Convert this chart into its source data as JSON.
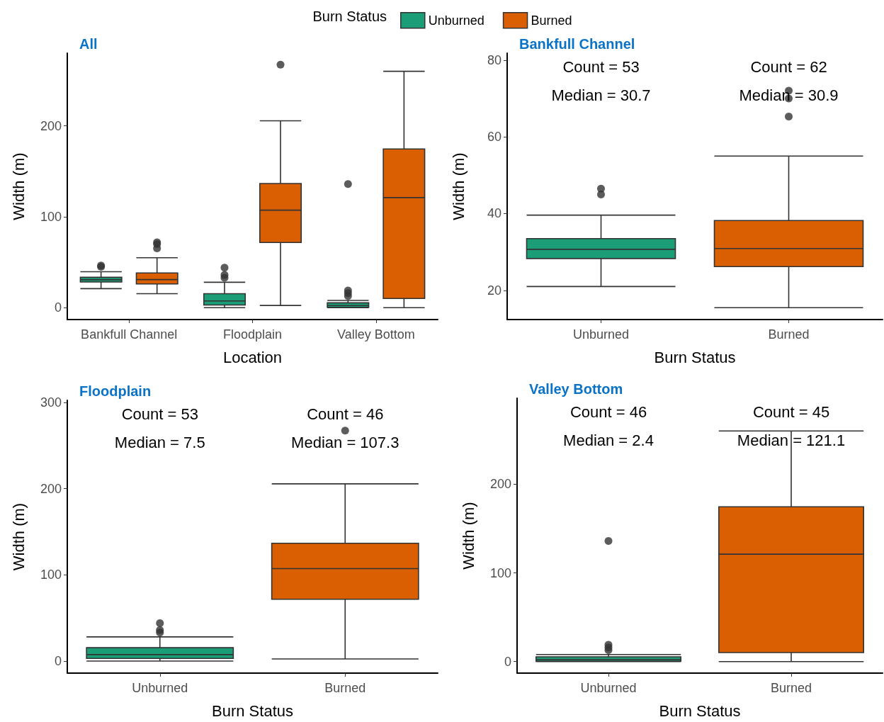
{
  "chart_data": [
    {
      "type": "box",
      "title": "All",
      "xlabel": "Location",
      "ylabel": "Width (m)",
      "legend_title": "Burn Status",
      "legend": "top",
      "categories": [
        "Bankfull Channel",
        "Floodplain",
        "Valley Bottom"
      ],
      "ylim": [
        -13,
        280
      ],
      "yticks": [
        0,
        100,
        200
      ],
      "series": [
        {
          "name": "Unburned",
          "color": "#1b9e77",
          "boxes": [
            {
              "low": 21,
              "q1": 28.3,
              "median": 30.7,
              "q3": 33.5,
              "high": 39.6,
              "outliers": [
                45,
                46.5
              ]
            },
            {
              "low": 0,
              "q1": 3,
              "median": 7.5,
              "q3": 15.5,
              "high": 28,
              "outliers": [
                33,
                36,
                44
              ]
            },
            {
              "low": 0,
              "q1": 0.5,
              "median": 2.4,
              "q3": 5.4,
              "high": 8,
              "outliers": [
                13,
                16,
                19,
                136
              ]
            }
          ]
        },
        {
          "name": "Burned",
          "color": "#d95f02",
          "boxes": [
            {
              "low": 15.5,
              "q1": 26.2,
              "median": 30.9,
              "q3": 38.2,
              "high": 55,
              "outliers": [
                65.3,
                70,
                72
              ]
            },
            {
              "low": 2.5,
              "q1": 71.7,
              "median": 107.3,
              "q3": 136.6,
              "high": 205.6,
              "outliers": [
                267.4
              ]
            },
            {
              "low": 0,
              "q1": 10.2,
              "median": 121.1,
              "q3": 174.6,
              "high": 260
            }
          ]
        }
      ]
    },
    {
      "type": "box",
      "title": "Bankfull Channel",
      "xlabel": "Burn Status",
      "ylabel": "Width (m)",
      "categories": [
        "Unburned",
        "Burned"
      ],
      "colors": [
        "#1b9e77",
        "#d95f02"
      ],
      "ylim": [
        12.4,
        81.8
      ],
      "yticks": [
        20,
        40,
        60,
        80
      ],
      "boxes": [
        {
          "low": 21,
          "q1": 28.3,
          "median": 30.7,
          "q3": 33.5,
          "high": 39.6,
          "outliers": [
            45,
            46.5
          ]
        },
        {
          "low": 15.5,
          "q1": 26.2,
          "median": 30.9,
          "q3": 38.2,
          "high": 55,
          "outliers": [
            65.3,
            70,
            72
          ]
        }
      ],
      "annotations": [
        "Count = 53",
        "Median = 30.7",
        "Count = 62",
        "Median = 30.9"
      ]
    },
    {
      "type": "box",
      "title": "Floodplain",
      "xlabel": "Burn Status",
      "ylabel": "Width (m)",
      "categories": [
        "Unburned",
        "Burned"
      ],
      "colors": [
        "#1b9e77",
        "#d95f02"
      ],
      "ylim": [
        -14,
        302.5
      ],
      "yticks": [
        0,
        100,
        200,
        300
      ],
      "boxes": [
        {
          "low": 0,
          "q1": 3,
          "median": 7.5,
          "q3": 15.5,
          "high": 28,
          "outliers": [
            33,
            36,
            44
          ]
        },
        {
          "low": 2.5,
          "q1": 71.7,
          "median": 107.3,
          "q3": 136.6,
          "high": 205.6,
          "outliers": [
            267.4
          ]
        }
      ],
      "annotations": [
        "Count = 53",
        "Median = 7.5",
        "Count = 46",
        "Median = 107.3"
      ]
    },
    {
      "type": "box",
      "title": "Valley Bottom",
      "xlabel": "Burn Status",
      "ylabel": "Width (m)",
      "categories": [
        "Unburned",
        "Burned"
      ],
      "colors": [
        "#1b9e77",
        "#d95f02"
      ],
      "ylim": [
        -13,
        297
      ],
      "yticks": [
        0,
        100,
        200
      ],
      "boxes": [
        {
          "low": 0,
          "q1": 0.5,
          "median": 2.4,
          "q3": 5.4,
          "high": 8,
          "outliers": [
            13,
            16,
            19,
            136
          ]
        },
        {
          "low": 0,
          "q1": 10.2,
          "median": 121.1,
          "q3": 174.6,
          "high": 260
        }
      ],
      "annotations": [
        "Count = 46",
        "Median = 2.4",
        "Count = 45",
        "Median = 121.1"
      ]
    }
  ]
}
